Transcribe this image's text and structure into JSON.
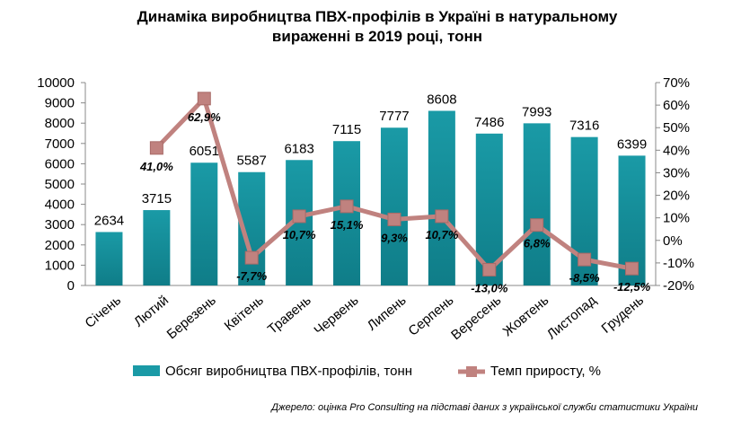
{
  "chart_data": {
    "type": "bar",
    "title_line1": "Динаміка виробництва ПВХ-профілів в Україні в натуральному",
    "title_line2": "вираженні в 2019 році, тонн",
    "categories": [
      "Січень",
      "Лютий",
      "Березень",
      "Квітень",
      "Травень",
      "Червень",
      "Липень",
      "Серпень",
      "Вересень",
      "Жовтень",
      "Листопад",
      "Грудень"
    ],
    "series": [
      {
        "name": "Обсяг виробництва  ПВХ-профілів, тонн",
        "type": "bar",
        "axis": "left",
        "color": "#1a9aa6",
        "values": [
          2634,
          3715,
          6051,
          5587,
          6183,
          7115,
          7777,
          8608,
          7486,
          7993,
          7316,
          6399
        ],
        "labels": [
          "2634",
          "3715",
          "6051",
          "5587",
          "6183",
          "7115",
          "7777",
          "8608",
          "7486",
          "7993",
          "7316",
          "6399"
        ]
      },
      {
        "name": "Темп приросту,  %",
        "type": "line",
        "axis": "right",
        "color": "#c0827f",
        "values": [
          null,
          41.0,
          62.9,
          -7.7,
          10.7,
          15.1,
          9.3,
          10.7,
          -13.0,
          6.8,
          -8.5,
          -12.5
        ],
        "labels": [
          "",
          "41,0%",
          "62,9%",
          "-7,7%",
          "10,7%",
          "15,1%",
          "9,3%",
          "10,7%",
          "-13,0%",
          "6,8%",
          "-8,5%",
          "-12,5%"
        ]
      }
    ],
    "y_left": {
      "min": 0,
      "max": 10000,
      "step": 1000,
      "ticks": [
        "0",
        "1000",
        "2000",
        "3000",
        "4000",
        "5000",
        "6000",
        "7000",
        "8000",
        "9000",
        "10000"
      ]
    },
    "y_right": {
      "min": -20,
      "max": 70,
      "step": 10,
      "ticks": [
        "-20%",
        "-10%",
        "0%",
        "10%",
        "20%",
        "30%",
        "40%",
        "50%",
        "60%",
        "70%"
      ]
    },
    "legend_position": "bottom",
    "grid": false
  },
  "source_text": "Джерело: оцінка Pro Consulting на підставі даних з української служби статистики України"
}
